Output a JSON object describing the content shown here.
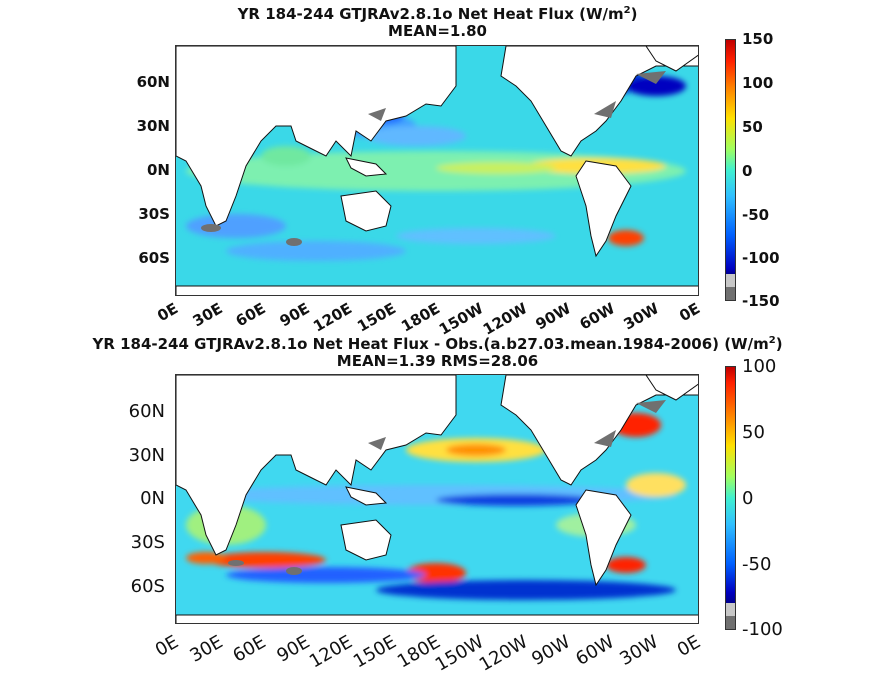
{
  "panels": [
    {
      "title_line1": "YR 184-244 GTJRAv2.8.1o  Net Heat Flux (W/m",
      "title_sup": "2",
      "title_close": ")",
      "title_line2": "MEAN=1.80",
      "lat_labels": [
        "60N",
        "30N",
        "0N",
        "30S",
        "60S"
      ],
      "lon_labels": [
        "0E",
        "30E",
        "60E",
        "90E",
        "120E",
        "150E",
        "180E",
        "150W",
        "120W",
        "90W",
        "60W",
        "30W",
        "0E"
      ],
      "colorbar_labels": [
        "150",
        "100",
        "50",
        "0",
        "-50",
        "-100",
        "-150"
      ]
    },
    {
      "title_line1": "YR 184-244 GTJRAv2.8.1o  Net Heat Flux - Obs.(a.b27.03.mean.1984-2006) (W/m",
      "title_sup": "2",
      "title_close": ")",
      "title_line2": "MEAN=1.39 RMS=28.06",
      "lat_labels": [
        "60N",
        "30N",
        "0N",
        "30S",
        "60S"
      ],
      "lon_labels": [
        "0E",
        "30E",
        "60E",
        "90E",
        "120E",
        "150E",
        "180E",
        "150W",
        "120W",
        "90W",
        "60W",
        "30W",
        "0E"
      ],
      "colorbar_labels": [
        "100",
        "50",
        "0",
        "-50",
        "-100"
      ]
    }
  ],
  "colors": {
    "land": "#ffffff",
    "ocean_base": "#3ad8e8",
    "missing": "#707070",
    "colormap": [
      "#00008f",
      "#0000ff",
      "#0080ff",
      "#00ffff",
      "#80ff80",
      "#ffff00",
      "#ff8000",
      "#ff0000",
      "#800000"
    ]
  }
}
